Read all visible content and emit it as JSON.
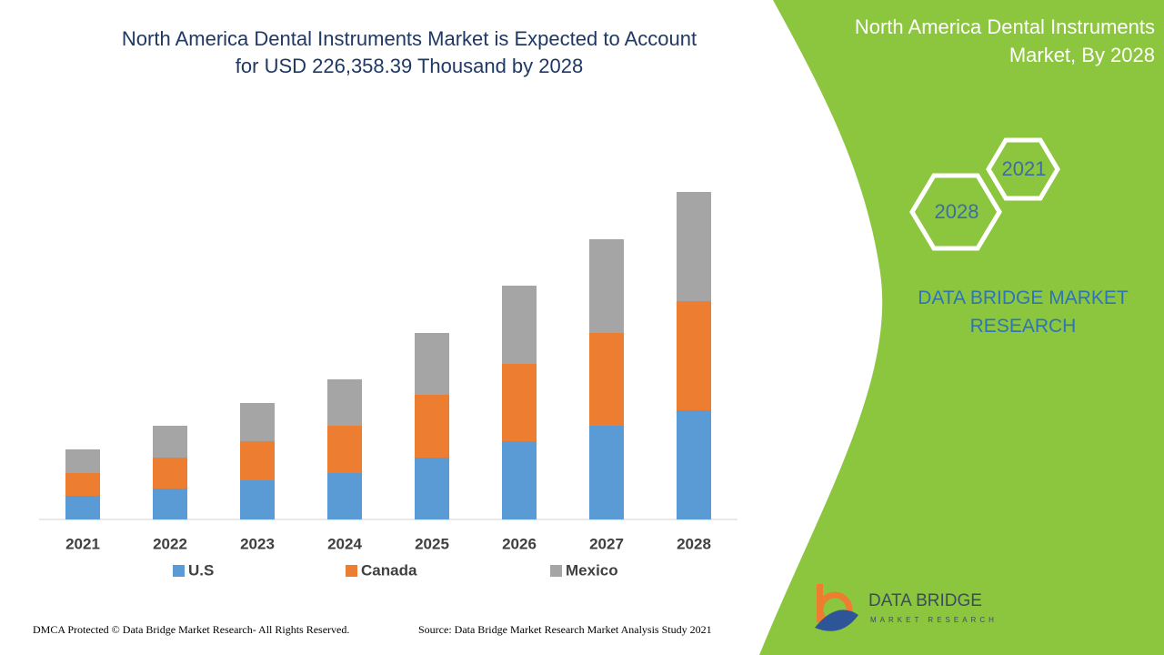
{
  "chart_data": {
    "type": "stacked_bar",
    "title": "North America Dental Instruments Market is Expected to Account for USD 226,358.39 Thousand by 2028",
    "categories": [
      "2021",
      "2022",
      "2023",
      "2024",
      "2025",
      "2026",
      "2027",
      "2028"
    ],
    "series": [
      {
        "name": "U.S",
        "color": "#5b9bd5",
        "values": [
          26,
          34,
          43,
          51,
          68,
          86,
          103,
          120
        ]
      },
      {
        "name": "Canada",
        "color": "#ed7d31",
        "values": [
          25,
          34,
          43,
          52,
          69,
          85,
          102,
          120
        ]
      },
      {
        "name": "Mexico",
        "color": "#a5a5a5",
        "values": [
          26,
          35,
          42,
          51,
          68,
          86,
          103,
          120
        ]
      }
    ],
    "ylim": [
      0,
      360
    ],
    "legend": "bottom"
  },
  "panel": {
    "title": "North America Dental Instruments Market, By 2028",
    "hex_years": [
      "2021",
      "2028"
    ],
    "brand": "DATA BRIDGE MARKET RESEARCH"
  },
  "logo": {
    "name": "DATA BRIDGE",
    "tagline": "MARKET RESEARCH"
  },
  "footer": {
    "left": "DMCA Protected © Data Bridge Market Research- All Rights Reserved.",
    "right": "Source: Data Bridge Market Research Market Analysis Study 2021"
  }
}
